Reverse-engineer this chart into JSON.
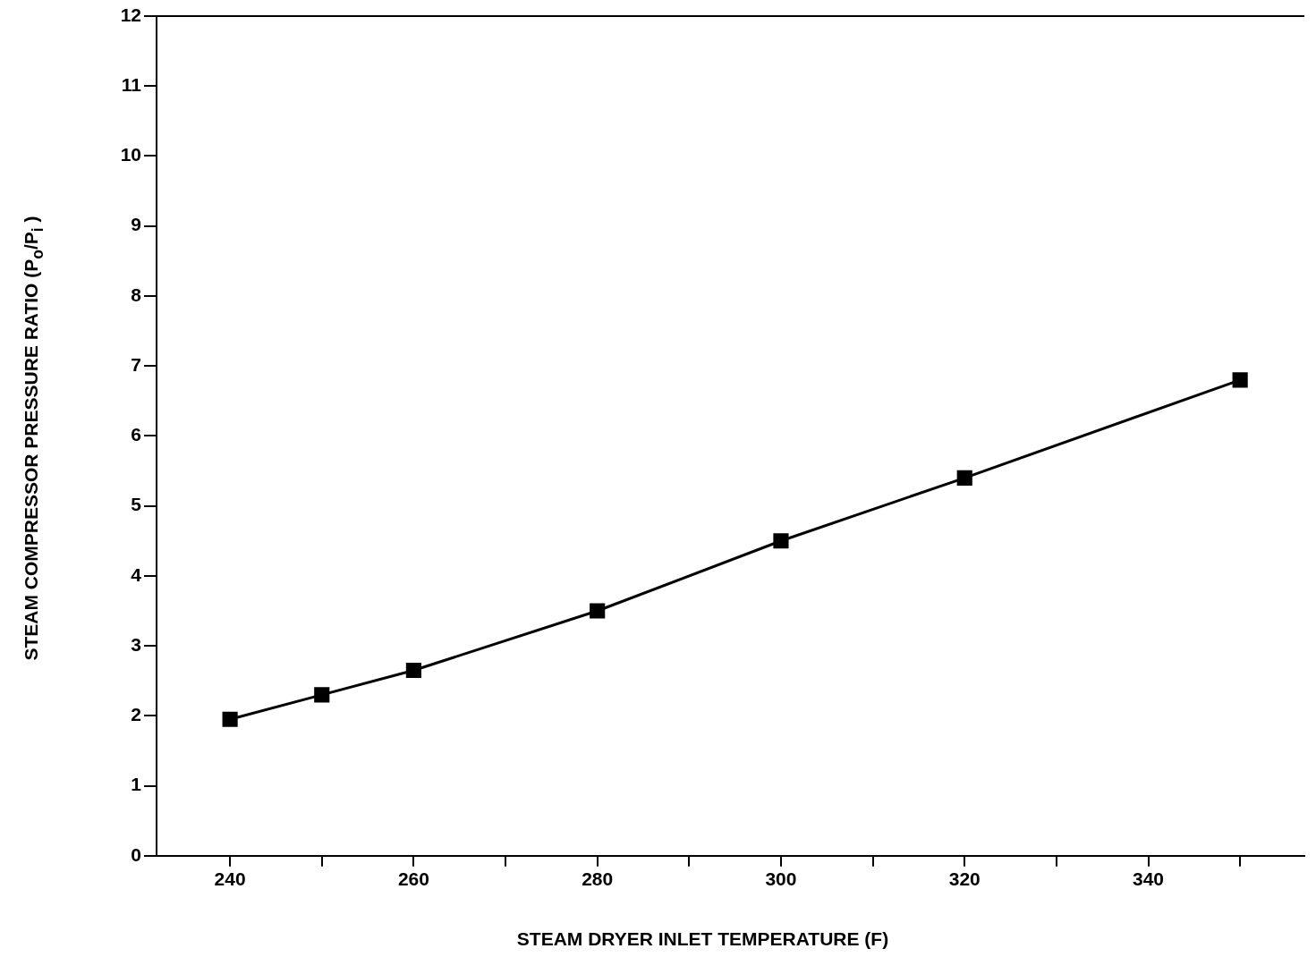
{
  "chart_data": {
    "type": "line",
    "xlabel": "STEAM DRYER INLET TEMPERATURE (F)",
    "ylabel": "STEAM COMPRESSOR PRESSURE RATIO (P$_{o}$/P$_{i}$ )",
    "x": [
      240,
      250,
      260,
      280,
      300,
      320,
      350
    ],
    "series": [
      {
        "color": "#000000",
        "values": [
          1.95,
          2.3,
          2.65,
          3.5,
          4.5,
          5.4,
          6.8
        ]
      }
    ],
    "xlim": [
      232,
      357
    ],
    "xticks": [
      240,
      {
        "value": 250,
        "label": null
      },
      260,
      {
        "value": 270,
        "label": null
      },
      280,
      {
        "value": 290,
        "label": null
      },
      300,
      {
        "value": 310,
        "label": null
      },
      320,
      {
        "value": 330,
        "label": null
      },
      340,
      {
        "value": 350,
        "label": null
      }
    ],
    "ylim": [
      0,
      12
    ],
    "yticks": [
      0,
      1,
      2,
      3,
      4,
      5,
      6,
      7,
      8,
      9,
      10,
      11,
      12
    ],
    "grid": false,
    "legend": false,
    "marker": "square",
    "line_style": "solid"
  }
}
